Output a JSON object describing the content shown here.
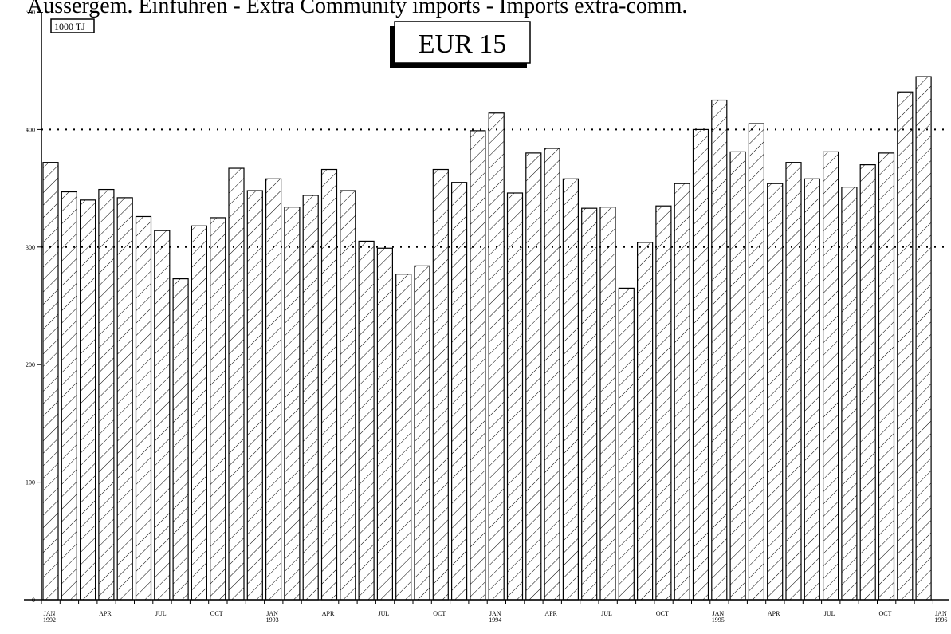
{
  "header_text": "Aussergem. Einfuhren - Extra Community imports - Imports extra-comm.",
  "chart_data": {
    "type": "bar",
    "title": "EUR 15",
    "unit_label": "1000 TJ",
    "ylim": [
      0,
      500
    ],
    "yticks": [
      "0",
      "100",
      "200",
      "300",
      "400",
      "500"
    ],
    "gridlines": [
      300,
      400
    ],
    "x_tick_labels": [
      {
        "index": 0,
        "month": "JAN",
        "year": "1992"
      },
      {
        "index": 3,
        "month": "APR",
        "year": ""
      },
      {
        "index": 6,
        "month": "JUL",
        "year": ""
      },
      {
        "index": 9,
        "month": "OCT",
        "year": ""
      },
      {
        "index": 12,
        "month": "JAN",
        "year": "1993"
      },
      {
        "index": 15,
        "month": "APR",
        "year": ""
      },
      {
        "index": 18,
        "month": "JUL",
        "year": ""
      },
      {
        "index": 21,
        "month": "OCT",
        "year": ""
      },
      {
        "index": 24,
        "month": "JAN",
        "year": "1994"
      },
      {
        "index": 27,
        "month": "APR",
        "year": ""
      },
      {
        "index": 30,
        "month": "JUL",
        "year": ""
      },
      {
        "index": 33,
        "month": "OCT",
        "year": ""
      },
      {
        "index": 36,
        "month": "JAN",
        "year": "1995"
      },
      {
        "index": 39,
        "month": "APR",
        "year": ""
      },
      {
        "index": 42,
        "month": "JUL",
        "year": ""
      },
      {
        "index": 45,
        "month": "OCT",
        "year": ""
      },
      {
        "index": 48,
        "month": "JAN",
        "year": "1996"
      }
    ],
    "categories": [
      "1992-01",
      "1992-02",
      "1992-03",
      "1992-04",
      "1992-05",
      "1992-06",
      "1992-07",
      "1992-08",
      "1992-09",
      "1992-10",
      "1992-11",
      "1992-12",
      "1993-01",
      "1993-02",
      "1993-03",
      "1993-04",
      "1993-05",
      "1993-06",
      "1993-07",
      "1993-08",
      "1993-09",
      "1993-10",
      "1993-11",
      "1993-12",
      "1994-01",
      "1994-02",
      "1994-03",
      "1994-04",
      "1994-05",
      "1994-06",
      "1994-07",
      "1994-08",
      "1994-09",
      "1994-10",
      "1994-11",
      "1994-12",
      "1995-01",
      "1995-02",
      "1995-03",
      "1995-04",
      "1995-05",
      "1995-06",
      "1995-07",
      "1995-08",
      "1995-09",
      "1995-10",
      "1995-11",
      "1995-12"
    ],
    "values": [
      372,
      347,
      340,
      349,
      342,
      326,
      314,
      273,
      318,
      325,
      367,
      348,
      358,
      334,
      344,
      366,
      348,
      305,
      299,
      277,
      284,
      366,
      355,
      399,
      414,
      346,
      380,
      384,
      358,
      333,
      334,
      265,
      304,
      335,
      354,
      400,
      425,
      381,
      405,
      354,
      372,
      358,
      381,
      351,
      370,
      380,
      432,
      445
    ]
  }
}
